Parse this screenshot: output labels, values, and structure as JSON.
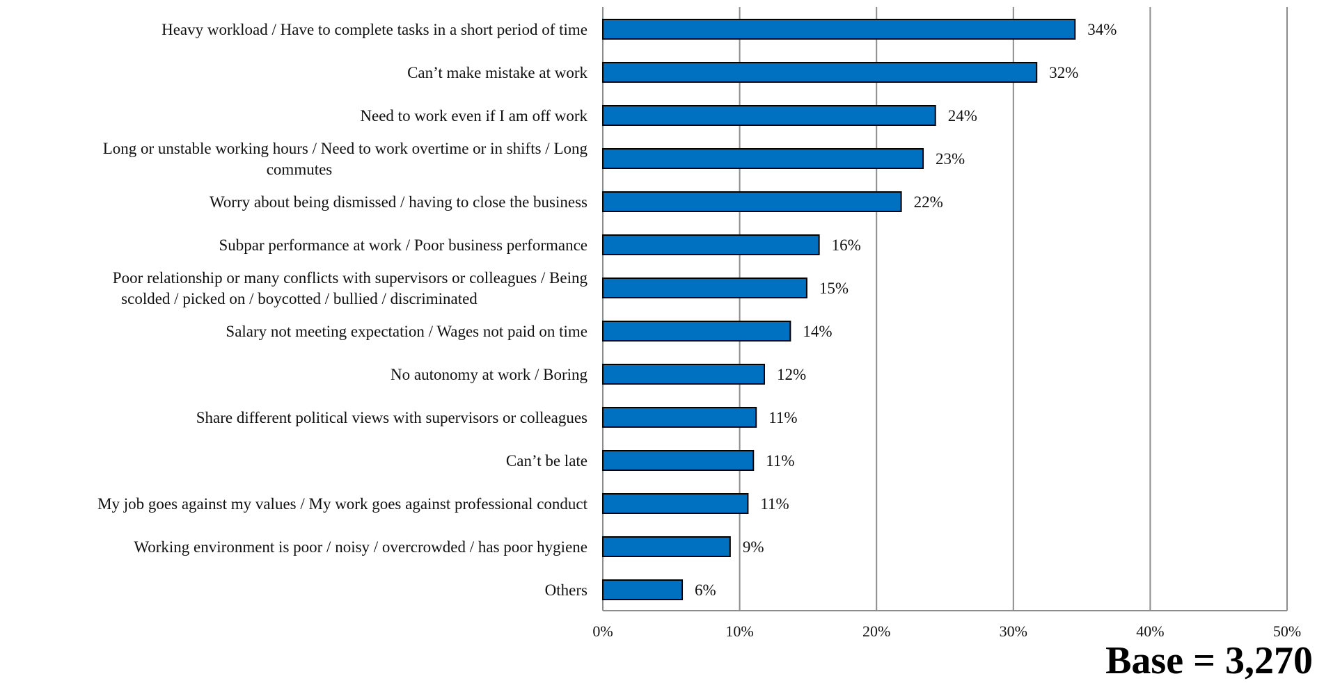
{
  "chart_data": {
    "type": "bar",
    "orientation": "horizontal",
    "categories": [
      [
        "Heavy workload / Have to complete tasks in a short period of time"
      ],
      [
        "Can’t make mistake at work"
      ],
      [
        "Need to work even if I am off work"
      ],
      [
        "Long or unstable working hours / Need to work overtime or in shifts / Long",
        "commutes"
      ],
      [
        "Worry about being dismissed / having to close the business"
      ],
      [
        "Subpar performance at work / Poor business performance"
      ],
      [
        "Poor relationship or many conflicts with supervisors or colleagues / Being",
        "scolded / picked on / boycotted / bullied / discriminated"
      ],
      [
        "Salary not meeting expectation / Wages not paid on time"
      ],
      [
        "No autonomy at work / Boring"
      ],
      [
        "Share different political views with supervisors or colleagues"
      ],
      [
        "Can’t be late"
      ],
      [
        "My job goes against my values / My work goes against professional conduct"
      ],
      [
        "Working environment is poor / noisy / overcrowded / has poor hygiene"
      ],
      [
        "Others"
      ]
    ],
    "values": [
      34.5,
      31.7,
      24.3,
      23.4,
      21.8,
      15.8,
      14.9,
      13.7,
      11.8,
      11.2,
      11.0,
      10.6,
      9.3,
      5.8
    ],
    "value_labels": [
      "34%",
      "32%",
      "24%",
      "23%",
      "22%",
      "16%",
      "15%",
      "14%",
      "12%",
      "11%",
      "11%",
      "11%",
      "9%",
      "6%"
    ],
    "xlim": [
      0,
      50
    ],
    "xticks": [
      0,
      10,
      20,
      30,
      40,
      50
    ],
    "xtick_labels": [
      "0%",
      "10%",
      "20%",
      "30%",
      "40%",
      "50%"
    ],
    "grid": true,
    "bar_color": "#0070C0",
    "bar_edge_color": "#000000",
    "title": "",
    "xlabel": "",
    "ylabel": ""
  },
  "base_note": "Base = 3,270"
}
